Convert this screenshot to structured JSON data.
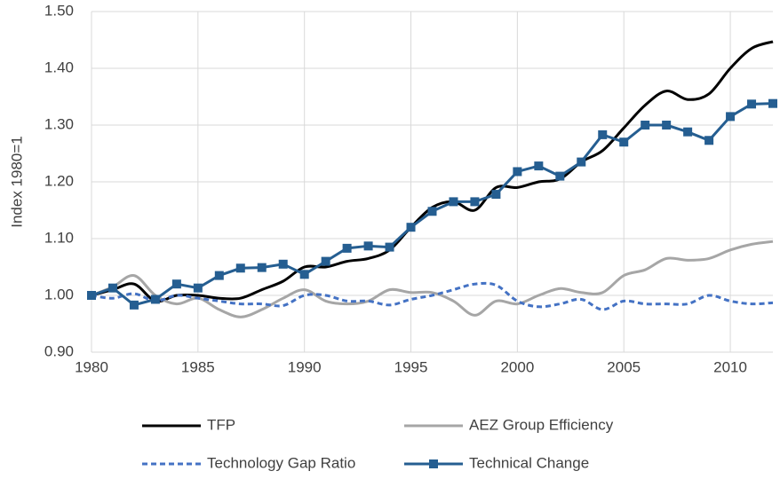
{
  "chart_data": {
    "type": "line",
    "y_label": "Index 1980=1",
    "x": [
      1980,
      1981,
      1982,
      1983,
      1984,
      1985,
      1986,
      1987,
      1988,
      1989,
      1990,
      1991,
      1992,
      1993,
      1994,
      1995,
      1996,
      1997,
      1998,
      1999,
      2000,
      2001,
      2002,
      2003,
      2004,
      2005,
      2006,
      2007,
      2008,
      2009,
      2010,
      2011,
      2012
    ],
    "xlim": [
      1980,
      2012
    ],
    "xticks": [
      1980,
      1985,
      1990,
      1995,
      2000,
      2005,
      2010
    ],
    "ylim": [
      0.9,
      1.5
    ],
    "yticks": [
      {
        "value": 0.9,
        "label": "0.90"
      },
      {
        "value": 1.0,
        "label": "1.00"
      },
      {
        "value": 1.1,
        "label": "1.10"
      },
      {
        "value": 1.2,
        "label": "1.20"
      },
      {
        "value": 1.3,
        "label": "1.30"
      },
      {
        "value": 1.4,
        "label": "1.40"
      },
      {
        "value": 1.5,
        "label": "1.50"
      }
    ],
    "grid": true,
    "legend": "bottom",
    "series": [
      {
        "name": "TFP",
        "color": "#000000",
        "style": "solid",
        "smooth": true,
        "values": [
          1.0,
          1.01,
          1.02,
          0.99,
          1.0,
          1.0,
          0.995,
          0.995,
          1.01,
          1.025,
          1.05,
          1.05,
          1.06,
          1.065,
          1.08,
          1.12,
          1.155,
          1.165,
          1.15,
          1.19,
          1.19,
          1.2,
          1.205,
          1.235,
          1.255,
          1.295,
          1.335,
          1.36,
          1.345,
          1.355,
          1.4,
          1.435,
          1.447
        ]
      },
      {
        "name": "AEZ Group Efficiency",
        "color": "#a6a6a6",
        "style": "solid",
        "smooth": true,
        "values": [
          1.0,
          1.015,
          1.035,
          1.0,
          0.985,
          0.995,
          0.975,
          0.962,
          0.975,
          0.995,
          1.01,
          0.99,
          0.985,
          0.99,
          1.01,
          1.005,
          1.005,
          0.99,
          0.965,
          0.99,
          0.985,
          1.0,
          1.012,
          1.005,
          1.005,
          1.035,
          1.045,
          1.065,
          1.062,
          1.065,
          1.08,
          1.09,
          1.095
        ]
      },
      {
        "name": "Technology Gap Ratio",
        "color": "#4472c4",
        "style": "dashed",
        "smooth": true,
        "values": [
          1.0,
          0.995,
          1.003,
          0.99,
          1.0,
          0.995,
          0.99,
          0.985,
          0.985,
          0.982,
          1.0,
          1.0,
          0.99,
          0.99,
          0.983,
          0.993,
          1.0,
          1.01,
          1.02,
          1.018,
          0.99,
          0.98,
          0.985,
          0.993,
          0.975,
          0.99,
          0.985,
          0.985,
          0.985,
          1.0,
          0.99,
          0.985,
          0.987
        ]
      },
      {
        "name": "Technical Change",
        "color": "#255e91",
        "style": "solid",
        "smooth": false,
        "marker": "square",
        "values": [
          1.0,
          1.013,
          0.983,
          0.993,
          1.02,
          1.013,
          1.035,
          1.048,
          1.049,
          1.055,
          1.037,
          1.06,
          1.083,
          1.087,
          1.085,
          1.12,
          1.148,
          1.165,
          1.165,
          1.178,
          1.218,
          1.228,
          1.21,
          1.235,
          1.283,
          1.27,
          1.3,
          1.3,
          1.288,
          1.273,
          1.315,
          1.337,
          1.338
        ]
      }
    ]
  }
}
